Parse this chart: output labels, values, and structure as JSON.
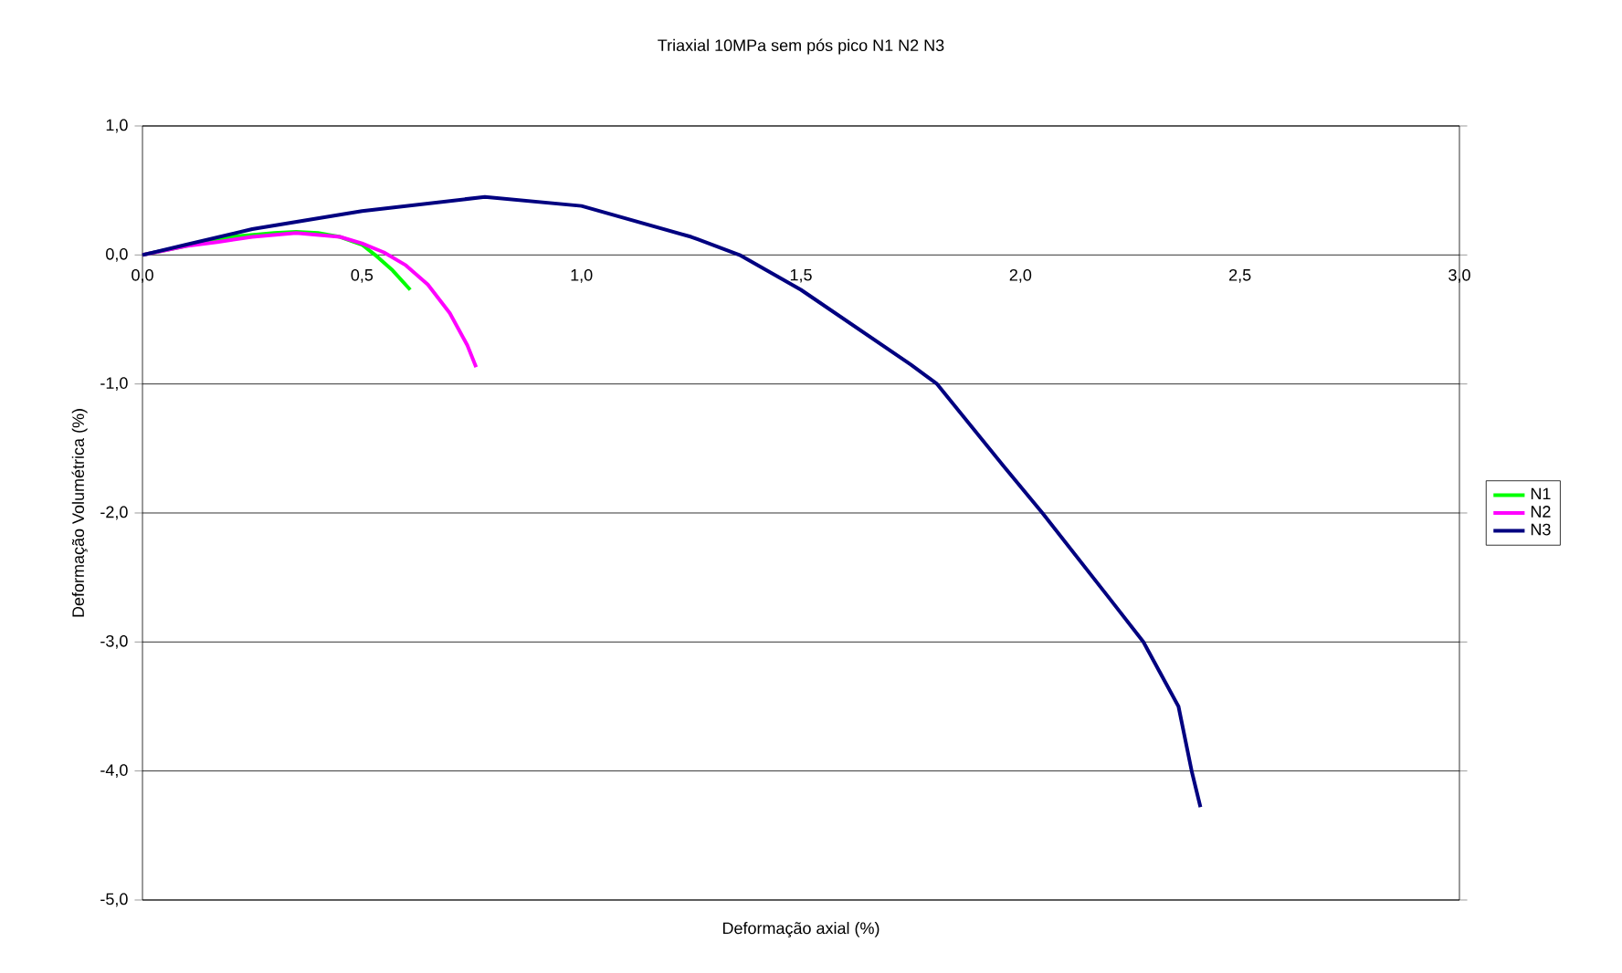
{
  "chart_data": {
    "type": "line",
    "title": "Triaxial 10MPa sem pós pico N1 N2 N3",
    "xlabel": "Deformação axial (%)",
    "ylabel": "Deformação Volumétrica (%)",
    "xlim": [
      0,
      3
    ],
    "ylim": [
      -5,
      1
    ],
    "xticks": [
      {
        "value": 0,
        "label": "0,0"
      },
      {
        "value": 0.5,
        "label": "0,5"
      },
      {
        "value": 1,
        "label": "1,0"
      },
      {
        "value": 1.5,
        "label": "1,5"
      },
      {
        "value": 2,
        "label": "2,0"
      },
      {
        "value": 2.5,
        "label": "2,5"
      },
      {
        "value": 3,
        "label": "3,0"
      }
    ],
    "yticks": [
      {
        "value": -5,
        "label": "-5,0"
      },
      {
        "value": -4,
        "label": "-4,0"
      },
      {
        "value": -3,
        "label": "-3,0"
      },
      {
        "value": -2,
        "label": "-2,0"
      },
      {
        "value": -1,
        "label": "-1,0"
      },
      {
        "value": 0,
        "label": "0,0"
      },
      {
        "value": 1,
        "label": "1,0"
      }
    ],
    "grid": "y",
    "legend": "right",
    "marker": "none",
    "line_style": "solid",
    "series": [
      {
        "name": "N1",
        "color": "#00ff00",
        "x": [
          0,
          0.1,
          0.2,
          0.3,
          0.35,
          0.4,
          0.45,
          0.5,
          0.53,
          0.57,
          0.61
        ],
        "values": [
          0,
          null,
          0.14,
          0.17,
          0.18,
          0.17,
          0.14,
          0.08,
          0.0,
          -0.12,
          -0.27
        ]
      },
      {
        "name": "N2",
        "color": "#ff00ff",
        "x": [
          0,
          0.1,
          0.17,
          0.25,
          0.35,
          0.45,
          0.5,
          0.55,
          0.6,
          0.65,
          0.7,
          0.74,
          0.76
        ],
        "values": [
          0,
          0.07,
          0.1,
          0.14,
          0.17,
          0.14,
          0.09,
          0.02,
          -0.08,
          -0.23,
          -0.45,
          -0.7,
          -0.87
        ]
      },
      {
        "name": "N3",
        "color": "#000080",
        "x": [
          0,
          0.1,
          0.25,
          0.5,
          0.78,
          1.0,
          1.25,
          1.36,
          1.5,
          1.75,
          1.81,
          1.96,
          2.05,
          2.2,
          2.28,
          2.36,
          2.39,
          2.41
        ],
        "values": [
          0,
          0.08,
          0.2,
          0.34,
          0.45,
          0.38,
          0.14,
          0.0,
          -0.27,
          -0.85,
          -1.0,
          -1.63,
          -2.0,
          -2.65,
          -3.0,
          -3.5,
          -4.0,
          -4.28
        ]
      }
    ]
  }
}
